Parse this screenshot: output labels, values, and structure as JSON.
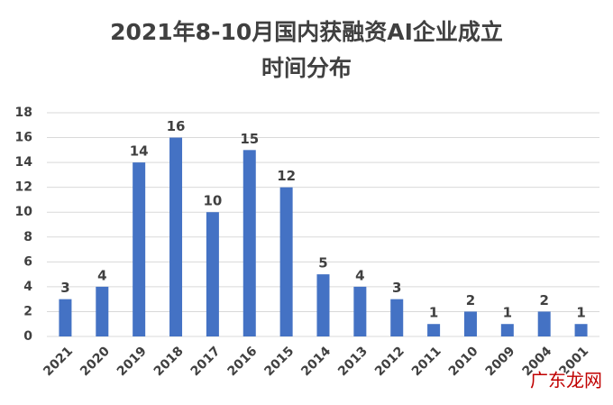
{
  "chart_data": {
    "type": "bar",
    "title": [
      "2021年8-10月国内获融资AI企业成立",
      "时间分布"
    ],
    "categories": [
      "2021",
      "2020",
      "2019",
      "2018",
      "2017",
      "2016",
      "2015",
      "2014",
      "2013",
      "2012",
      "2011",
      "2010",
      "2009",
      "2004",
      "2001"
    ],
    "values": [
      3,
      4,
      14,
      16,
      10,
      15,
      12,
      5,
      4,
      3,
      1,
      2,
      1,
      2,
      1
    ],
    "color": "#4472c4",
    "ylim": [
      0,
      18
    ],
    "yticks": [
      0,
      2,
      4,
      6,
      8,
      10,
      12,
      14,
      16,
      18
    ],
    "grid": true
  },
  "watermark": "广东龙网"
}
